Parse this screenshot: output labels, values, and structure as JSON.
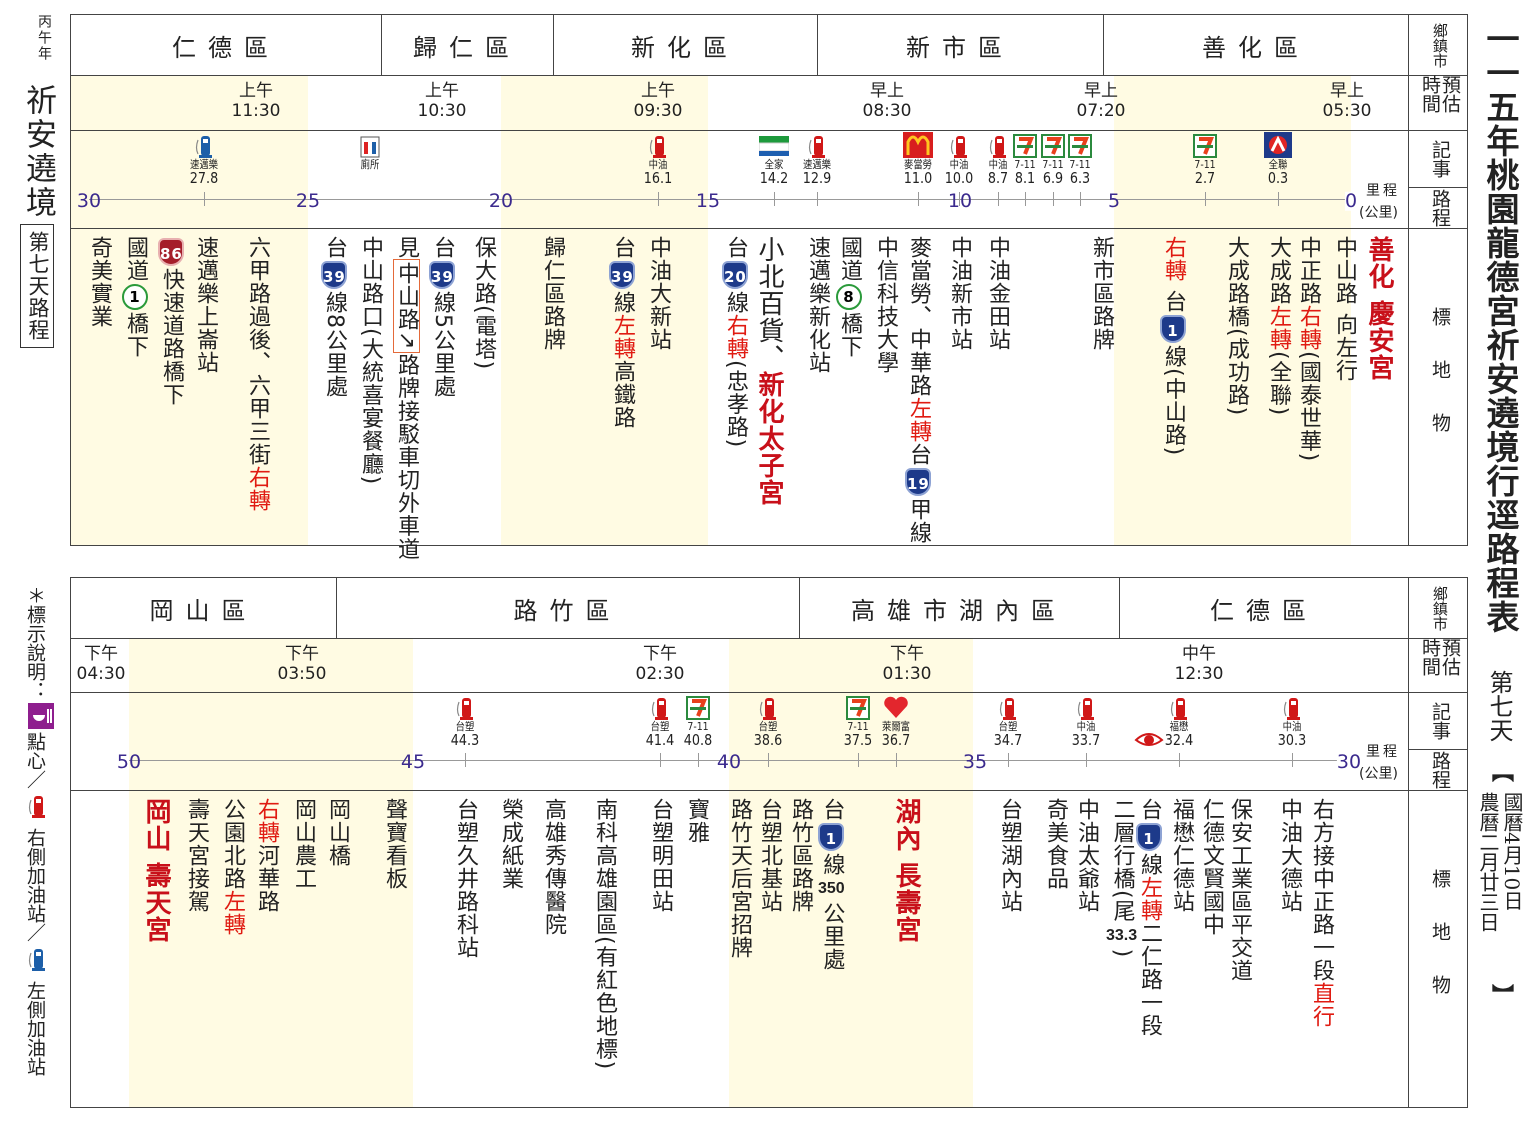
{
  "left_margin": {
    "year": "丙午年",
    "title": "祈安遶境",
    "day_box": "第七天路程"
  },
  "legend": {
    "prefix": "＊標示說明：",
    "items": [
      {
        "icon": "dessert-icon",
        "label": "點心／"
      },
      {
        "icon": "gas-pump-red-icon",
        "label": "右側加油站／"
      },
      {
        "icon": "gas-pump-blue-icon",
        "label": "左側加油站"
      }
    ]
  },
  "right_margin": {
    "title": "一一五年桃園龍德宮祈安遶境行逕路程表",
    "day": "第七天",
    "open": "【",
    "gregorian": "國曆4月10日",
    "lunar": "農曆二月廿三日",
    "close": "】"
  },
  "row_labels": {
    "district": "鄉鎮市",
    "time": "預估時間",
    "notes": "記事",
    "distance": "路程",
    "landmarks": "標地物",
    "km_unit": "里程",
    "km_unit2": "(公里)"
  },
  "colors": {
    "accent_red": "#e01b12",
    "axis_label": "#3b2a8e",
    "shade": "#fffbe3"
  },
  "top": {
    "districts": [
      "仁德區",
      "歸仁區",
      "新化區",
      "新市區",
      "善化區"
    ],
    "times": [
      {
        "p": "上午",
        "t": "11:30"
      },
      {
        "p": "上午",
        "t": "10:30"
      },
      {
        "p": "上午",
        "t": "09:30"
      },
      {
        "p": "早上",
        "t": "08:30"
      },
      {
        "p": "早上",
        "t": "07:20"
      },
      {
        "p": "早上",
        "t": "05:30"
      }
    ],
    "axis": [
      30,
      25,
      20,
      15,
      10,
      5,
      0
    ],
    "markers": [
      {
        "icon": "gas-pump-blue-icon",
        "name": "速邁樂",
        "km": "27.8"
      },
      {
        "icon": "toilet-icon",
        "name": "廁所",
        "km": ""
      },
      {
        "icon": "gas-pump-red-icon",
        "name": "中油",
        "km": "16.1"
      },
      {
        "icon": "familymart-icon",
        "name": "全家",
        "km": "14.2"
      },
      {
        "icon": "gas-pump-red-icon",
        "name": "速邁樂",
        "km": "12.9"
      },
      {
        "icon": "mcdonalds-icon",
        "name": "麥當勞",
        "km": "11.0"
      },
      {
        "icon": "gas-pump-red-icon",
        "name": "中油",
        "km": "10.0"
      },
      {
        "icon": "gas-pump-red-icon",
        "name": "中油",
        "km": "8.7"
      },
      {
        "icon": "seven-eleven-icon",
        "name": "7-11",
        "km": "8.1"
      },
      {
        "icon": "seven-eleven-icon",
        "name": "7-11",
        "km": "6.9"
      },
      {
        "icon": "seven-eleven-icon",
        "name": "7-11",
        "km": "6.3"
      },
      {
        "icon": "seven-eleven-icon",
        "name": "7-11",
        "km": "2.7"
      },
      {
        "icon": "pxmart-icon",
        "name": "全聯",
        "km": "0.3"
      }
    ],
    "landmarks": [
      [
        {
          "t": "奇美實業"
        }
      ],
      [
        {
          "t": "國道"
        },
        {
          "t": "1",
          "s": "plum"
        },
        {
          "t": "橋下"
        }
      ],
      [
        {
          "t": "86",
          "s": "r86"
        },
        {
          "t": "快速道路橋下"
        }
      ],
      [
        {
          "t": "速邁樂上崙站"
        }
      ],
      [
        {
          "t": "六甲路過後、六甲三街"
        },
        {
          "t": "右轉",
          "s": "red"
        }
      ],
      [
        {
          "t": "台"
        },
        {
          "t": "39",
          "s": "shield"
        },
        {
          "t": "線8公里處"
        }
      ],
      [
        {
          "t": "中山路口(大統喜宴餐廳)"
        }
      ],
      [
        {
          "t": "見"
        },
        {
          "t": "中山路↗",
          "s": "boxed"
        },
        {
          "t": "路牌接駁車切外車道"
        }
      ],
      [
        {
          "t": "台"
        },
        {
          "t": "39",
          "s": "shield"
        },
        {
          "t": "線5公里處"
        }
      ],
      [
        {
          "t": "保大路(電塔)"
        }
      ],
      [
        {
          "t": "歸仁區路牌"
        }
      ],
      [
        {
          "t": "台"
        },
        {
          "t": "39",
          "s": "shield"
        },
        {
          "t": "線"
        },
        {
          "t": "左轉",
          "s": "red"
        },
        {
          "t": "高鐵路"
        }
      ],
      [
        {
          "t": "中油大新站"
        }
      ],
      [
        {
          "t": "台"
        },
        {
          "t": "20",
          "s": "shield"
        },
        {
          "t": "線"
        },
        {
          "t": "右轉",
          "s": "red"
        },
        {
          "t": "(忠孝路)"
        }
      ],
      [
        {
          "t": "小北百貨、"
        },
        {
          "t": "新化太子宮",
          "s": "redbold"
        }
      ],
      [
        {
          "t": "速邁樂新化站"
        }
      ],
      [
        {
          "t": "國道"
        },
        {
          "t": "8",
          "s": "plum"
        },
        {
          "t": "橋下"
        }
      ],
      [
        {
          "t": "中信科技大學"
        }
      ],
      [
        {
          "t": "麥當勞、中華路"
        },
        {
          "t": "左轉",
          "s": "red"
        },
        {
          "t": "台"
        },
        {
          "t": "19",
          "s": "shield"
        },
        {
          "t": "甲線"
        }
      ],
      [
        {
          "t": "中油新市站"
        }
      ],
      [
        {
          "t": "中油金田站"
        }
      ],
      [
        {
          "t": "新市區路牌"
        }
      ],
      [
        {
          "t": "右轉",
          "s": "red"
        },
        {
          "t": " 台"
        },
        {
          "t": "1",
          "s": "shield"
        },
        {
          "t": "線(中山路)"
        }
      ],
      [
        {
          "t": "大成路橋(成功路)"
        }
      ],
      [
        {
          "t": "大成路"
        },
        {
          "t": "左轉",
          "s": "red"
        },
        {
          "t": "(全聯)"
        }
      ],
      [
        {
          "t": "中正路"
        },
        {
          "t": "右轉",
          "s": "red"
        },
        {
          "t": "(國泰世華)"
        }
      ],
      [
        {
          "t": "中山路 向左行"
        }
      ],
      [
        {
          "t": "善化 慶安宮",
          "s": "redbold"
        }
      ]
    ]
  },
  "bottom": {
    "districts": [
      "岡山區",
      "路竹區",
      "高雄市湖內區",
      "仁德區"
    ],
    "times": [
      {
        "p": "下午",
        "t": "04:30"
      },
      {
        "p": "下午",
        "t": "03:50"
      },
      {
        "p": "下午",
        "t": "02:30"
      },
      {
        "p": "下午",
        "t": "01:30"
      },
      {
        "p": "中午",
        "t": "12:30"
      }
    ],
    "axis": [
      50,
      45,
      40,
      35,
      30
    ],
    "markers": [
      {
        "icon": "gas-pump-red-icon",
        "name": "台塑",
        "km": "44.3"
      },
      {
        "icon": "gas-pump-red-icon",
        "name": "台塑",
        "km": "41.4"
      },
      {
        "icon": "seven-eleven-icon",
        "name": "7-11",
        "km": "40.8"
      },
      {
        "icon": "gas-pump-red-icon",
        "name": "台塑",
        "km": "38.6"
      },
      {
        "icon": "seven-eleven-icon",
        "name": "7-11",
        "km": "37.5"
      },
      {
        "icon": "hilife-icon",
        "name": "萊爾富",
        "km": "36.7"
      },
      {
        "icon": "gas-pump-red-icon",
        "name": "台塑",
        "km": "34.7"
      },
      {
        "icon": "gas-pump-red-icon",
        "name": "中油",
        "km": "33.7"
      },
      {
        "icon": "gas-pump-red-icon",
        "name": "福懋",
        "km": "32.4"
      },
      {
        "icon": "gas-pump-red-icon",
        "name": "中油",
        "km": "30.3"
      }
    ],
    "landmarks": [
      [
        {
          "t": "岡山 壽天宮",
          "s": "redbold"
        }
      ],
      [
        {
          "t": "壽天宮接駕"
        }
      ],
      [
        {
          "t": "公園北路"
        },
        {
          "t": "左轉",
          "s": "red"
        }
      ],
      [
        {
          "t": "右轉",
          "s": "red"
        },
        {
          "t": "河華路"
        }
      ],
      [
        {
          "t": "岡山農工"
        }
      ],
      [
        {
          "t": "岡山橋"
        }
      ],
      [
        {
          "t": "聲寶看板"
        }
      ],
      [
        {
          "t": "台塑久井路科站"
        }
      ],
      [
        {
          "t": "榮成紙業"
        }
      ],
      [
        {
          "t": "高雄秀傳醫院"
        }
      ],
      [
        {
          "t": "南科高雄園區(有紅色地標)"
        }
      ],
      [
        {
          "t": "台塑明田站"
        }
      ],
      [
        {
          "t": "寶雅"
        }
      ],
      [
        {
          "t": "路竹天后宮招牌"
        }
      ],
      [
        {
          "t": "台塑北基站"
        }
      ],
      [
        {
          "t": "路竹區路牌"
        }
      ],
      [
        {
          "t": "台"
        },
        {
          "t": "1",
          "s": "shield"
        },
        {
          "t": "線"
        },
        {
          "t": "350",
          "s": "num"
        },
        {
          "t": "公里處"
        }
      ],
      [
        {
          "t": "湖內 長壽宮",
          "s": "redbold"
        }
      ],
      [
        {
          "t": "台塑湖內站"
        }
      ],
      [
        {
          "t": "奇美食品"
        }
      ],
      [
        {
          "t": "中油太爺站"
        }
      ],
      [
        {
          "t": "二層行橋(尾"
        },
        {
          "t": "33.3",
          "s": "num"
        },
        {
          "t": ")"
        }
      ],
      [
        {
          "t": "台"
        },
        {
          "t": "1",
          "s": "shield"
        },
        {
          "t": "線"
        },
        {
          "t": "左轉",
          "s": "red"
        },
        {
          "t": "二仁路一段"
        }
      ],
      [
        {
          "t": "福懋仁德站"
        }
      ],
      [
        {
          "t": "仁德文賢國中"
        }
      ],
      [
        {
          "t": "保安工業區平交道"
        }
      ],
      [
        {
          "t": "中油大德站"
        }
      ],
      [
        {
          "t": "右方接中正路一段"
        },
        {
          "t": "直行",
          "s": "red"
        }
      ]
    ]
  }
}
